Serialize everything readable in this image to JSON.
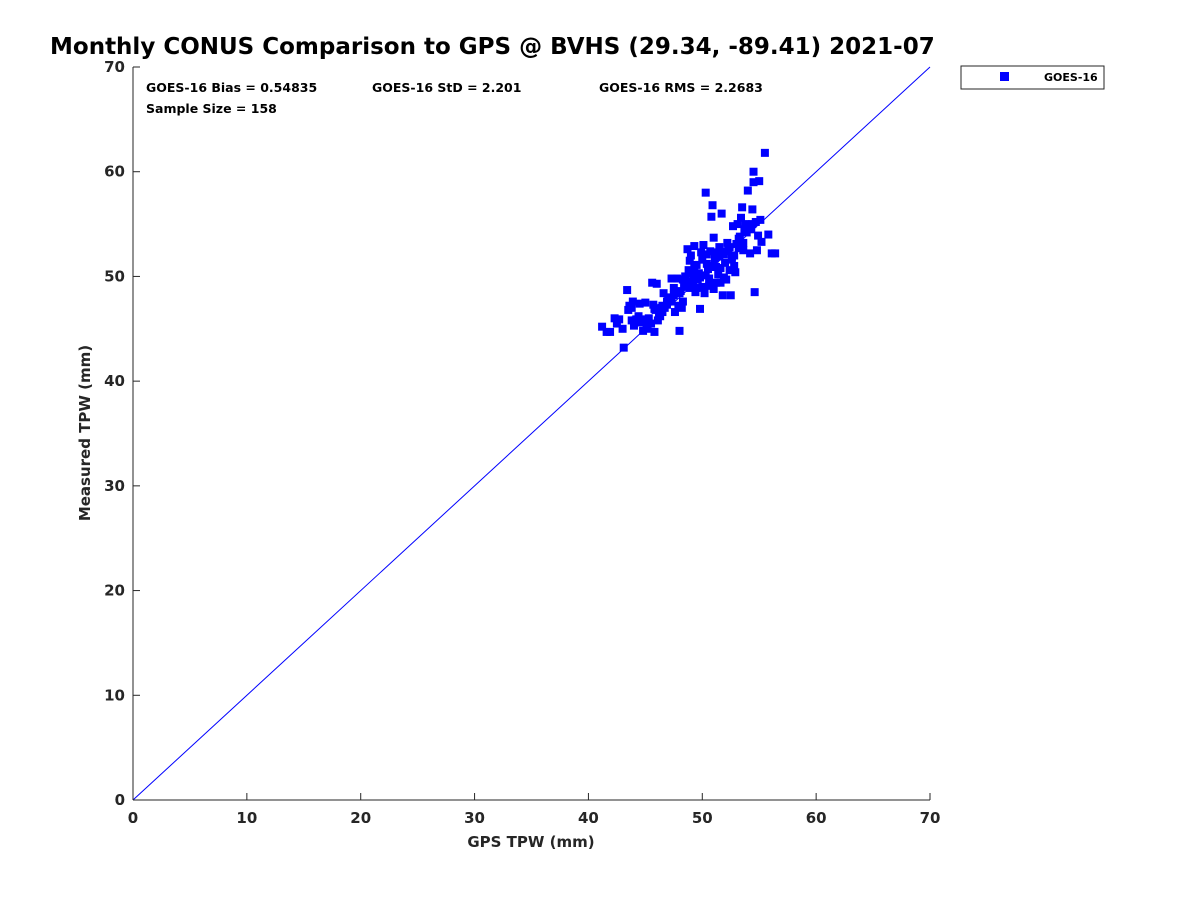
{
  "chart_data": {
    "type": "scatter",
    "title": "Monthly CONUS Comparison to GPS @ BVHS (29.34, -89.41) 2021-07",
    "xlabel": "GPS TPW (mm)",
    "ylabel": "Measured TPW (mm)",
    "xlim": [
      0,
      70
    ],
    "ylim": [
      0,
      70
    ],
    "xticks": [
      0,
      10,
      20,
      30,
      40,
      50,
      60,
      70
    ],
    "yticks": [
      0,
      10,
      20,
      30,
      40,
      50,
      60,
      70
    ],
    "grid": false,
    "legend_position": "outside-top-right",
    "reference_line": {
      "from": [
        0,
        0
      ],
      "to": [
        70,
        70
      ],
      "color": "#0000ff"
    },
    "stats": [
      "GOES-16 Bias = 0.54835",
      "GOES-16 StD = 2.201",
      "GOES-16 RMS = 2.2683",
      "Sample Size = 158"
    ],
    "series": [
      {
        "name": "GOES-16",
        "color": "#0000ff",
        "marker": "square",
        "points": [
          [
            41.2,
            45.2
          ],
          [
            41.6,
            44.7
          ],
          [
            41.9,
            44.7
          ],
          [
            42.3,
            46.0
          ],
          [
            42.5,
            45.5
          ],
          [
            42.7,
            45.9
          ],
          [
            43.0,
            45.0
          ],
          [
            43.1,
            43.2
          ],
          [
            43.4,
            48.7
          ],
          [
            43.5,
            46.8
          ],
          [
            43.6,
            47.2
          ],
          [
            43.8,
            45.8
          ],
          [
            43.9,
            47.6
          ],
          [
            44.0,
            45.3
          ],
          [
            44.2,
            45.9
          ],
          [
            44.5,
            47.4
          ],
          [
            44.6,
            45.6
          ],
          [
            44.8,
            44.8
          ],
          [
            44.9,
            45.9
          ],
          [
            45.0,
            47.5
          ],
          [
            45.1,
            45.0
          ],
          [
            45.3,
            46.0
          ],
          [
            45.5,
            45.5
          ],
          [
            45.6,
            49.4
          ],
          [
            45.7,
            47.3
          ],
          [
            45.8,
            44.7
          ],
          [
            45.9,
            46.8
          ],
          [
            46.0,
            49.3
          ],
          [
            46.1,
            45.8
          ],
          [
            46.2,
            46.4
          ],
          [
            46.4,
            47.0
          ],
          [
            46.5,
            46.6
          ],
          [
            46.6,
            48.4
          ],
          [
            46.7,
            47.0
          ],
          [
            46.9,
            47.3
          ],
          [
            47.0,
            47.8
          ],
          [
            47.2,
            48.0
          ],
          [
            47.3,
            47.6
          ],
          [
            47.5,
            48.2
          ],
          [
            47.6,
            46.6
          ],
          [
            47.8,
            49.8
          ],
          [
            47.9,
            47.2
          ],
          [
            48.0,
            44.8
          ],
          [
            48.1,
            48.6
          ],
          [
            48.2,
            47.0
          ],
          [
            48.3,
            47.6
          ],
          [
            48.4,
            49.3
          ],
          [
            48.5,
            50.0
          ],
          [
            48.6,
            49.0
          ],
          [
            48.7,
            49.5
          ],
          [
            48.8,
            50.6
          ],
          [
            48.9,
            51.5
          ],
          [
            49.0,
            52.0
          ],
          [
            49.1,
            50.3
          ],
          [
            49.2,
            49.2
          ],
          [
            49.3,
            52.9
          ],
          [
            49.4,
            48.5
          ],
          [
            49.5,
            51.1
          ],
          [
            49.6,
            49.7
          ],
          [
            49.7,
            50.3
          ],
          [
            49.8,
            46.9
          ],
          [
            49.9,
            52.3
          ],
          [
            50.0,
            49.0
          ],
          [
            50.1,
            53.0
          ],
          [
            50.2,
            48.4
          ],
          [
            50.3,
            58.0
          ],
          [
            50.4,
            51.2
          ],
          [
            50.5,
            50.7
          ],
          [
            50.6,
            49.1
          ],
          [
            50.7,
            52.4
          ],
          [
            50.8,
            55.7
          ],
          [
            50.9,
            56.8
          ],
          [
            51.0,
            48.8
          ],
          [
            51.1,
            51.7
          ],
          [
            51.2,
            49.4
          ],
          [
            51.3,
            52.3
          ],
          [
            51.4,
            50.2
          ],
          [
            51.5,
            51.9
          ],
          [
            51.6,
            50.8
          ],
          [
            51.7,
            56.0
          ],
          [
            51.8,
            48.2
          ],
          [
            51.9,
            52.1
          ],
          [
            52.0,
            51.3
          ],
          [
            52.1,
            49.7
          ],
          [
            52.2,
            53.2
          ],
          [
            52.3,
            52.5
          ],
          [
            52.4,
            50.6
          ],
          [
            52.5,
            48.2
          ],
          [
            52.6,
            51.6
          ],
          [
            52.7,
            54.8
          ],
          [
            52.8,
            52.0
          ],
          [
            52.9,
            50.4
          ],
          [
            53.0,
            53.1
          ],
          [
            53.1,
            55.0
          ],
          [
            53.2,
            52.7
          ],
          [
            53.3,
            53.8
          ],
          [
            53.4,
            55.6
          ],
          [
            53.5,
            56.6
          ],
          [
            53.6,
            53.2
          ],
          [
            53.7,
            54.5
          ],
          [
            53.8,
            55.0
          ],
          [
            54.0,
            58.2
          ],
          [
            54.1,
            54.9
          ],
          [
            54.2,
            52.2
          ],
          [
            54.3,
            54.5
          ],
          [
            54.4,
            56.4
          ],
          [
            54.5,
            59.0
          ],
          [
            54.6,
            48.5
          ],
          [
            54.7,
            55.2
          ],
          [
            54.8,
            52.5
          ],
          [
            54.9,
            53.9
          ],
          [
            55.0,
            59.1
          ],
          [
            55.1,
            55.4
          ],
          [
            55.2,
            53.3
          ],
          [
            55.5,
            61.8
          ],
          [
            55.8,
            54.0
          ],
          [
            56.1,
            52.2
          ],
          [
            56.4,
            52.2
          ],
          [
            54.5,
            60.0
          ],
          [
            51.5,
            52.8
          ],
          [
            49.2,
            49.6
          ],
          [
            47.1,
            47.7
          ],
          [
            46.3,
            46.2
          ],
          [
            45.2,
            45.4
          ],
          [
            48.9,
            48.9
          ],
          [
            50.6,
            49.8
          ],
          [
            52.0,
            52.4
          ],
          [
            53.6,
            52.5
          ],
          [
            44.4,
            46.2
          ],
          [
            47.7,
            48.5
          ],
          [
            49.5,
            48.9
          ],
          [
            51.2,
            50.9
          ],
          [
            50.0,
            51.6
          ],
          [
            48.3,
            49.7
          ],
          [
            46.9,
            47.6
          ],
          [
            45.8,
            46.9
          ],
          [
            52.8,
            51.0
          ],
          [
            53.9,
            54.2
          ],
          [
            51.9,
            49.9
          ],
          [
            50.4,
            52.1
          ],
          [
            49.0,
            49.4
          ],
          [
            47.5,
            48.9
          ],
          [
            48.7,
            52.6
          ],
          [
            50.9,
            51.0
          ],
          [
            49.8,
            49.9
          ],
          [
            51.6,
            49.4
          ],
          [
            52.4,
            52.8
          ],
          [
            46.5,
            47.2
          ],
          [
            44.1,
            45.8
          ],
          [
            43.8,
            47.0
          ],
          [
            53.2,
            53.6
          ],
          [
            54.4,
            55.0
          ],
          [
            49.3,
            50.8
          ],
          [
            50.3,
            50.1
          ],
          [
            48.0,
            48.4
          ],
          [
            51.0,
            53.7
          ],
          [
            52.6,
            51.9
          ],
          [
            47.3,
            49.8
          ]
        ]
      }
    ]
  }
}
